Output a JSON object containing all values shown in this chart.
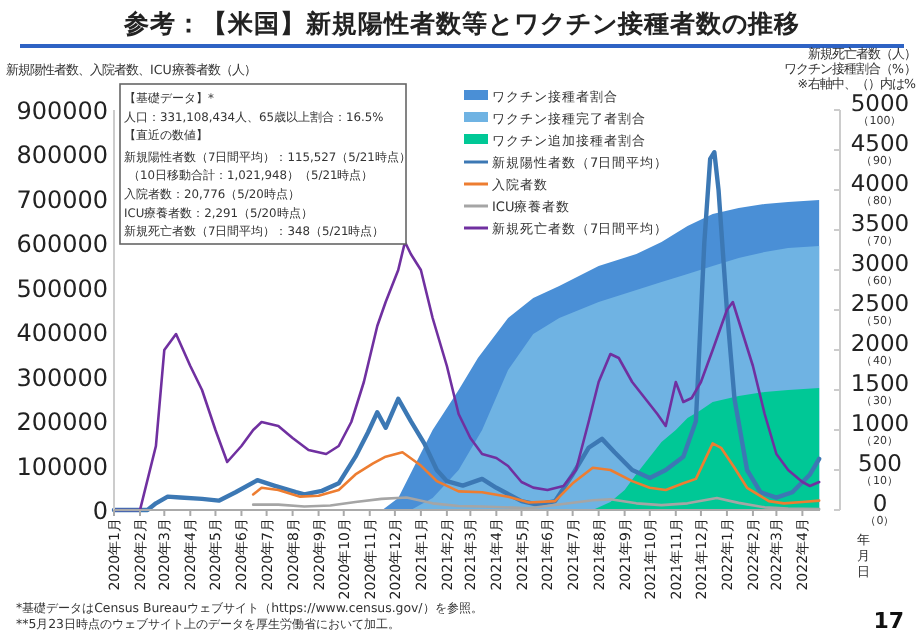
{
  "chart_data": {
    "type": "line",
    "title": "参考：【米国】新規陽性者数等とワクチン接種者数の推移",
    "ylabel": "新規陽性者数、入院者数、ICU療養者数（人）",
    "y2label": "新規死亡者数（人）",
    "y3label": "ワクチン接種割合（%）",
    "xlabel": "年月日",
    "annotations": [
      "※右軸中、（）内は%",
      "【基礎データ】*",
      "人口：331,108,434人、65歳以上割合：16.5%",
      "【直近の数値】",
      "新規陽性者数（7日間平均）：115,527（5/21時点）",
      "（10日移動合計：1,021,948）（5/21時点）",
      "入院者数：20,776（5/20時点）",
      "ICU療養者数：2,291（5/20時点）",
      "新規死亡者数（7日間平均）：348（5/21時点）",
      "*基礎データはCensus Bureauウェブサイト（https://www.census.gov/）を参照。",
      "**5月23日時点のウェブサイト上のデータを厚生労働省において加工。",
      "17"
    ],
    "xlim": [
      "2020-01-01",
      "2022-04-22"
    ],
    "xticks": [
      {
        "value": "2020-01-01",
        "label": "2020年1月"
      },
      {
        "value": "2020-02-01",
        "label": "2020年2月"
      },
      {
        "value": "2020-03-01",
        "label": "2020年3月"
      },
      {
        "value": "2020-04-01",
        "label": "2020年4月"
      },
      {
        "value": "2020-05-01",
        "label": "2020年5月"
      },
      {
        "value": "2020-06-01",
        "label": "2020年6月"
      },
      {
        "value": "2020-07-01",
        "label": "2020年7月"
      },
      {
        "value": "2020-08-01",
        "label": "2020年8月"
      },
      {
        "value": "2020-09-01",
        "label": "2020年9月"
      },
      {
        "value": "2020-10-01",
        "label": "2020年10月"
      },
      {
        "value": "2020-11-01",
        "label": "2020年11月"
      },
      {
        "value": "2020-12-01",
        "label": "2020年12月"
      },
      {
        "value": "2021-01-01",
        "label": "2021年1月"
      },
      {
        "value": "2021-02-01",
        "label": "2021年2月"
      },
      {
        "value": "2021-03-01",
        "label": "2021年3月"
      },
      {
        "value": "2021-04-01",
        "label": "2021年4月"
      },
      {
        "value": "2021-05-01",
        "label": "2021年5月"
      },
      {
        "value": "2021-06-01",
        "label": "2021年6月"
      },
      {
        "value": "2021-07-01",
        "label": "2021年7月"
      },
      {
        "value": "2021-08-01",
        "label": "2021年8月"
      },
      {
        "value": "2021-09-01",
        "label": "2021年9月"
      },
      {
        "value": "2021-10-01",
        "label": "2021年10月"
      },
      {
        "value": "2021-11-01",
        "label": "2021年11月"
      },
      {
        "value": "2021-12-01",
        "label": "2021年12月"
      },
      {
        "value": "2022-01-01",
        "label": "2022年1月"
      },
      {
        "value": "2022-02-01",
        "label": "2022年2月"
      },
      {
        "value": "2022-03-01",
        "label": "2022年3月"
      },
      {
        "value": "2022-04-01",
        "label": "2022年4月"
      }
    ],
    "ylim": [
      0,
      900000
    ],
    "yticks": [
      0,
      100000,
      200000,
      300000,
      400000,
      500000,
      600000,
      700000,
      800000,
      900000
    ],
    "y2lim": [
      0,
      5000
    ],
    "y2ticks": [
      0,
      500,
      1000,
      1500,
      2000,
      2500,
      3000,
      3500,
      4000,
      4500,
      5000
    ],
    "y3lim": [
      0,
      100
    ],
    "y3ticks": [
      {
        "value": 0,
        "label": "（0）"
      },
      {
        "value": 10,
        "label": "（10）"
      },
      {
        "value": 20,
        "label": "（20）"
      },
      {
        "value": 30,
        "label": "（30）"
      },
      {
        "value": 40,
        "label": "（40）"
      },
      {
        "value": 50,
        "label": "（50）"
      },
      {
        "value": 60,
        "label": "（60）"
      },
      {
        "value": 70,
        "label": "（70）"
      },
      {
        "value": 80,
        "label": "（80）"
      },
      {
        "value": 90,
        "label": "（90）"
      },
      {
        "value": 100,
        "label": "（100）"
      }
    ],
    "legend": "top",
    "grid": false,
    "marker": "none",
    "line_style": "solid",
    "series": [
      {
        "name": "ワクチン接種者割合",
        "type": "area",
        "axis": "y3",
        "color": "#4a8fd6",
        "x": [
          "2020-11-16",
          "2020-12-05",
          "2021-01-15",
          "2021-02-15",
          "2021-03-10",
          "2021-04-15",
          "2021-05-15",
          "2021-06-15",
          "2021-08-01",
          "2021-09-15",
          "2021-10-15",
          "2021-11-15",
          "2021-12-15",
          "2022-01-15",
          "2022-02-15",
          "2022-03-15",
          "2022-04-21"
        ],
        "values": [
          0,
          3,
          20,
          30,
          38,
          48,
          53,
          56,
          61,
          64,
          67,
          71,
          74,
          75.5,
          76.5,
          77,
          77.5
        ]
      },
      {
        "name": "ワクチン接種完了者割合",
        "type": "area",
        "axis": "y3",
        "color": "#6fb3e3",
        "x": [
          "2020-12-20",
          "2021-01-15",
          "2021-02-15",
          "2021-03-15",
          "2021-04-15",
          "2021-05-15",
          "2021-06-15",
          "2021-08-01",
          "2021-09-15",
          "2021-10-15",
          "2021-11-15",
          "2021-12-15",
          "2022-01-15",
          "2022-02-15",
          "2022-03-15",
          "2022-04-21"
        ],
        "values": [
          0,
          3,
          10,
          20,
          35,
          44,
          48,
          52,
          55,
          57,
          59,
          61,
          63,
          64.5,
          65.5,
          66
        ]
      },
      {
        "name": "ワクチン追加接種者割合",
        "type": "area",
        "axis": "y3",
        "color": "#00c896",
        "x": [
          "2021-07-25",
          "2021-08-15",
          "2021-09-01",
          "2021-09-15",
          "2021-10-15",
          "2021-11-01",
          "2021-11-15",
          "2021-12-01",
          "2021-12-15",
          "2022-01-15",
          "2022-02-15",
          "2022-03-15",
          "2022-04-21"
        ],
        "values": [
          0,
          2,
          5,
          9,
          17,
          20,
          23,
          25,
          27,
          28.5,
          29.5,
          30,
          30.5
        ]
      },
      {
        "name": "新規陽性者数（7日間平均）",
        "type": "line",
        "color": "#3c78b4",
        "x": [
          "2020-01-01",
          "2020-02-10",
          "2020-02-20",
          "2020-03-05",
          "2020-03-20",
          "2020-04-15",
          "2020-05-05",
          "2020-05-25",
          "2020-06-20",
          "2020-07-10",
          "2020-08-05",
          "2020-08-15",
          "2020-09-05",
          "2020-09-25",
          "2020-10-15",
          "2020-10-30",
          "2020-11-10",
          "2020-11-20",
          "2020-12-05",
          "2020-12-20",
          "2021-01-05",
          "2021-01-20",
          "2021-02-01",
          "2021-02-20",
          "2021-03-15",
          "2021-04-01",
          "2021-05-01",
          "2021-05-20",
          "2021-06-10",
          "2021-07-01",
          "2021-07-20",
          "2021-08-05",
          "2021-08-20",
          "2021-09-10",
          "2021-10-01",
          "2021-10-20",
          "2021-11-10",
          "2021-11-25",
          "2021-12-05",
          "2021-12-12",
          "2021-12-17",
          "2021-12-22",
          "2022-01-01",
          "2022-01-10",
          "2022-01-25",
          "2022-02-10",
          "2022-03-01",
          "2022-03-20",
          "2022-04-10",
          "2022-04-21"
        ],
        "values": [
          0,
          0,
          15000,
          30000,
          28000,
          25000,
          21000,
          40000,
          67000,
          55000,
          40000,
          35000,
          43000,
          60000,
          120000,
          175000,
          220000,
          185000,
          250000,
          200000,
          150000,
          90000,
          65000,
          55000,
          70000,
          50000,
          20000,
          12000,
          20000,
          80000,
          140000,
          160000,
          130000,
          90000,
          72000,
          90000,
          120000,
          200000,
          600000,
          790000,
          805000,
          720000,
          450000,
          250000,
          90000,
          40000,
          28000,
          40000,
          80000,
          115000
        ]
      },
      {
        "name": "入院者数",
        "type": "line",
        "color": "#ed7d31",
        "x": [
          "2020-06-15",
          "2020-06-25",
          "2020-07-15",
          "2020-08-10",
          "2020-09-01",
          "2020-09-25",
          "2020-10-15",
          "2020-11-05",
          "2020-11-20",
          "2020-12-10",
          "2021-01-01",
          "2021-01-20",
          "2021-02-15",
          "2021-03-15",
          "2021-04-15",
          "2021-05-10",
          "2021-06-10",
          "2021-07-01",
          "2021-07-25",
          "2021-08-15",
          "2021-09-10",
          "2021-10-01",
          "2021-10-20",
          "2021-11-10",
          "2021-11-25",
          "2021-12-15",
          "2021-12-25",
          "2022-01-10",
          "2022-01-25",
          "2022-02-20",
          "2022-03-10",
          "2022-04-01",
          "2022-04-21"
        ],
        "values": [
          35000,
          50000,
          45000,
          30000,
          32000,
          45000,
          80000,
          105000,
          120000,
          130000,
          100000,
          65000,
          42000,
          40000,
          30000,
          17000,
          20000,
          60000,
          95000,
          90000,
          65000,
          50000,
          45000,
          60000,
          70000,
          150000,
          140000,
          95000,
          50000,
          20000,
          15000,
          18000,
          21000
        ]
      },
      {
        "name": "ICU療養者数",
        "type": "line",
        "color": "#a5a5a5",
        "x": [
          "2020-06-15",
          "2020-07-15",
          "2020-08-15",
          "2020-09-15",
          "2020-10-15",
          "2020-11-15",
          "2020-12-15",
          "2021-01-15",
          "2021-02-15",
          "2021-03-15",
          "2021-05-10",
          "2021-07-25",
          "2021-08-15",
          "2021-09-15",
          "2021-10-15",
          "2021-11-15",
          "2021-12-20",
          "2022-01-15",
          "2022-02-15",
          "2022-03-15",
          "2022-04-21"
        ],
        "values": [
          12000,
          12000,
          8000,
          10000,
          18000,
          25000,
          28000,
          15000,
          9000,
          8000,
          4000,
          22000,
          24000,
          15000,
          11000,
          15000,
          27000,
          16000,
          6000,
          3000,
          2000
        ]
      },
      {
        "name": "新規死亡者数（7日間平均）",
        "type": "line",
        "axis": "y2",
        "color": "#7030a0",
        "x": [
          "2020-01-01",
          "2020-02-01",
          "2020-02-20",
          "2020-03-01",
          "2020-03-15",
          "2020-04-01",
          "2020-04-15",
          "2020-05-01",
          "2020-05-15",
          "2020-06-01",
          "2020-06-15",
          "2020-06-25",
          "2020-07-15",
          "2020-08-01",
          "2020-08-20",
          "2020-09-10",
          "2020-09-25",
          "2020-10-10",
          "2020-10-25",
          "2020-11-10",
          "2020-11-20",
          "2020-12-05",
          "2020-12-13",
          "2020-12-20",
          "2021-01-01",
          "2021-01-15",
          "2021-02-01",
          "2021-02-15",
          "2021-03-01",
          "2021-03-15",
          "2021-04-01",
          "2021-04-15",
          "2021-05-01",
          "2021-05-15",
          "2021-06-01",
          "2021-06-20",
          "2021-07-05",
          "2021-07-20",
          "2021-08-01",
          "2021-08-15",
          "2021-08-25",
          "2021-09-10",
          "2021-09-25",
          "2021-10-10",
          "2021-10-20",
          "2021-11-01",
          "2021-11-10",
          "2021-11-20",
          "2021-12-01",
          "2021-12-15",
          "2022-01-01",
          "2022-01-08",
          "2022-01-20",
          "2022-02-01",
          "2022-02-15",
          "2022-03-01",
          "2022-03-15",
          "2022-04-01",
          "2022-04-10",
          "2022-04-21"
        ],
        "values": [
          0,
          0,
          800,
          2000,
          2200,
          1800,
          1500,
          1000,
          600,
          800,
          1000,
          1100,
          1050,
          900,
          750,
          700,
          800,
          1100,
          1600,
          2300,
          2600,
          3000,
          3350,
          3200,
          3000,
          2400,
          1800,
          1200,
          900,
          700,
          650,
          550,
          350,
          280,
          250,
          300,
          500,
          1100,
          1600,
          1950,
          1900,
          1600,
          1400,
          1200,
          1050,
          1600,
          1350,
          1400,
          1600,
          2000,
          2500,
          2600,
          2200,
          1800,
          1200,
          700,
          500,
          350,
          300,
          350
        ]
      }
    ]
  }
}
